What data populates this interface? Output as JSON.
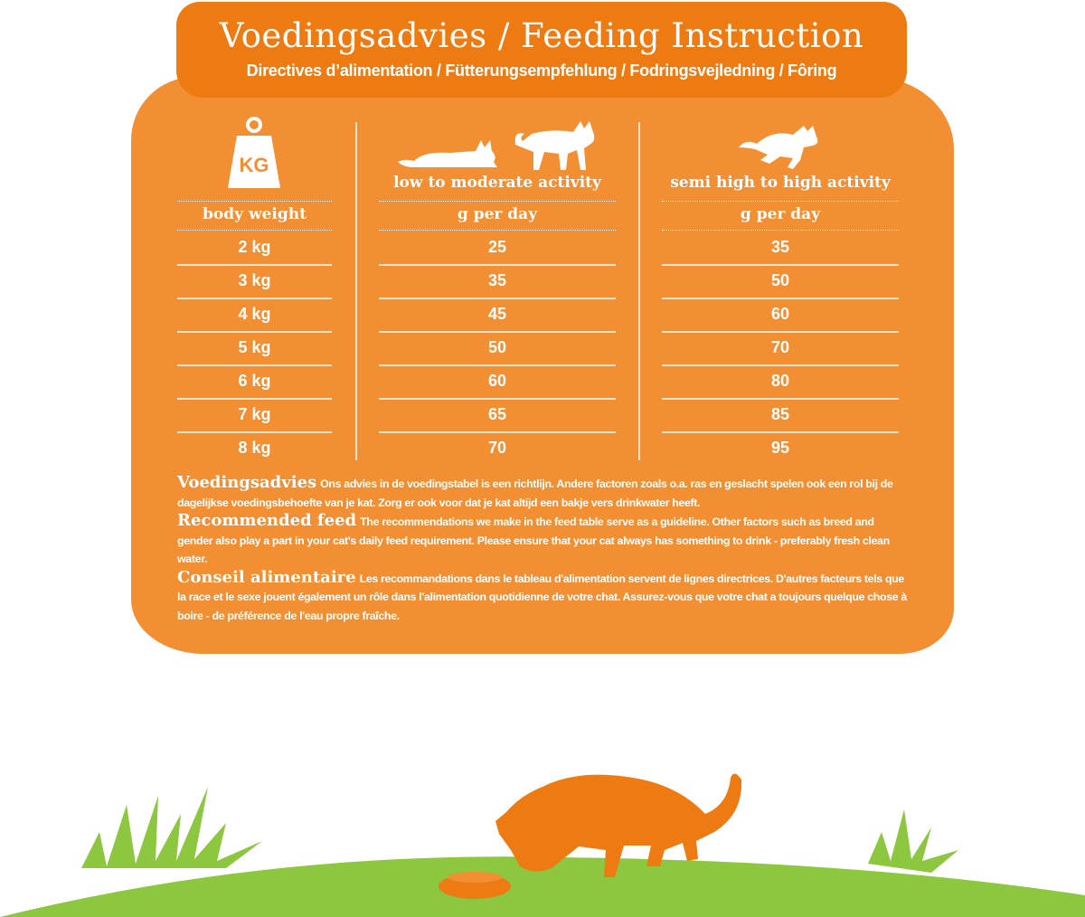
{
  "header": {
    "title": "Voedingsadvies / Feeding Instruction",
    "subtitle": "Directives d’alimentation / Fütterungsempfehlung / Fodringsvejledning / Fôring"
  },
  "table": {
    "weight_icon_label": "KG",
    "columns": [
      {
        "label": "body weight"
      },
      {
        "label": "low to moderate activity",
        "unit": "g per day"
      },
      {
        "label": "semi high to high activity",
        "unit": "g per day"
      }
    ],
    "rows": [
      [
        "2 kg",
        "25",
        "35"
      ],
      [
        "3 kg",
        "35",
        "50"
      ],
      [
        "4 kg",
        "45",
        "60"
      ],
      [
        "5 kg",
        "50",
        "70"
      ],
      [
        "6 kg",
        "60",
        "80"
      ],
      [
        "7 kg",
        "65",
        "85"
      ],
      [
        "8 kg",
        "70",
        "95"
      ]
    ]
  },
  "notes": [
    {
      "heading": "Voedingsadvies",
      "text": "Ons advies in de voedingstabel is een richtlijn. Andere factoren zoals o.a. ras en geslacht spelen ook een rol bij de dagelijkse voedingsbehoefte van je kat. Zorg er ook voor dat je kat altijd een bakje vers drinkwater heeft."
    },
    {
      "heading": "Recommended feed",
      "text": "The recommendations we make in the feed table serve as a guideline. Other factors such as breed and gender also play a part in your cat's daily feed requirement. Please ensure that your cat always has something to drink - preferably fresh clean water."
    },
    {
      "heading": "Conseil alimentaire",
      "text": "Les recommandations dans le tableau d'alimentation servent de lignes directrices. D'autres facteurs tels que la race et le sexe jouent également un rôle dans l'alimentation quotidienne de votre chat. Assurez-vous que votre chat a toujours quelque chose à boire - de préférence de l'eau propre fraîche."
    }
  ],
  "colors": {
    "banner": "#EE7A12",
    "card": "#F28F33",
    "grass": "#8DC63F",
    "cat": "#EE7A12"
  }
}
